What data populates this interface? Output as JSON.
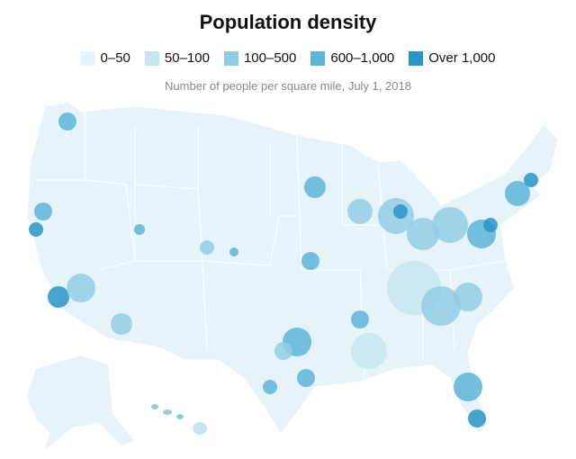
{
  "title": "Population density",
  "subtitle": "Number of people per square mile, July 1, 2018",
  "legend": [
    {
      "label": "0–50",
      "color": "#e6f3f8"
    },
    {
      "label": "50–100",
      "color": "#c7e5f0"
    },
    {
      "label": "100–500",
      "color": "#92cde4"
    },
    {
      "label": "600–1,000",
      "color": "#5cb4d9"
    },
    {
      "label": "Over 1,000",
      "color": "#2795c7"
    }
  ]
}
